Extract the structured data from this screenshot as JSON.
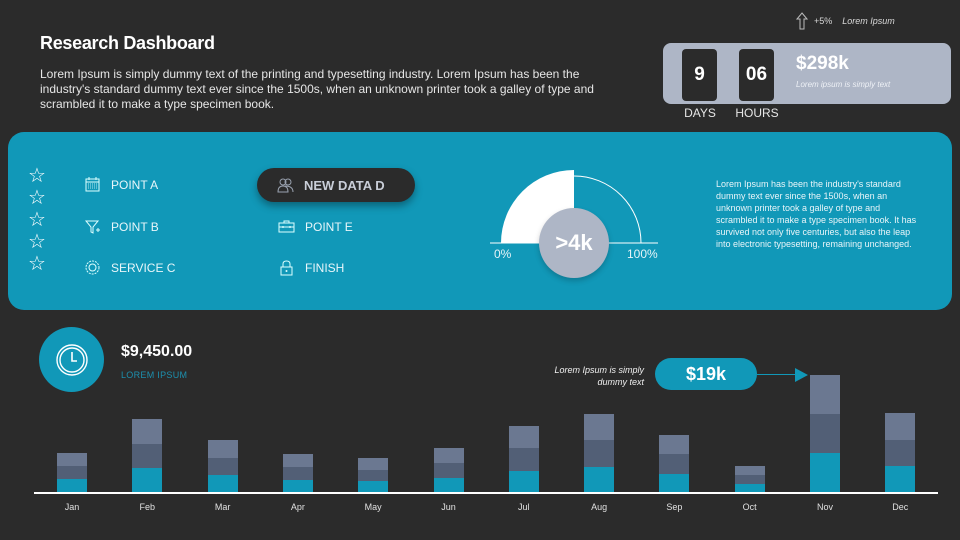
{
  "header": {
    "title": "Research Dashboard",
    "intro": "Lorem Ipsum is simply dummy text of the printing and typesetting industry. Lorem Ipsum has been the industry's standard dummy text ever since the 1500s, when an unknown printer took a galley of type and scrambled it to  make a type specimen book."
  },
  "trend": {
    "icon": "arrow-up-icon",
    "value": "+5%",
    "label": "Lorem Ipsum"
  },
  "counter": {
    "days_value": "9",
    "days_label": "DAYS",
    "hours_value": "06",
    "hours_label": "HOURS",
    "amount": "$298k",
    "amount_sub": "Lorem ipsum is simply text"
  },
  "panel": {
    "stars": 5,
    "items": [
      {
        "label": "POINT A",
        "icon": "calendar-icon"
      },
      {
        "label": "POINT B",
        "icon": "funnel-icon"
      },
      {
        "label": "SERVICE C",
        "icon": "settings-icon"
      },
      {
        "label": "NEW DATA D",
        "icon": "users-icon",
        "active": true
      },
      {
        "label": "POINT E",
        "icon": "briefcase-icon"
      },
      {
        "label": "FINISH",
        "icon": "lock-icon"
      }
    ],
    "gauge": {
      "value_label": ">4k",
      "min_label": "0%",
      "max_label": "100%",
      "fill_percent": 50
    },
    "description": "Lorem Ipsum has been the industry's standard dummy text ever since the  1500s, when an unknown printer took a galley  of type and scrambled it to make a type specimen book. It has survived not only five centuries, but also the leap into electronic typesetting,  remaining unchanged."
  },
  "summary": {
    "icon": "clock-icon",
    "amount": "$9,450.00",
    "label": "LOREM IPSUM"
  },
  "callout": {
    "text": "Lorem Ipsum is simply dummy text",
    "value": "$19k",
    "target_month": "Nov"
  },
  "colors": {
    "background": "#2b2b2b",
    "accent": "#1198b8",
    "card": "#aeb6c6",
    "bar_top": "#6b7891",
    "bar_mid": "#525f76",
    "bar_bottom": "#1198b8"
  },
  "chart_data": {
    "type": "bar",
    "stacked": true,
    "categories": [
      "Jan",
      "Feb",
      "Mar",
      "Apr",
      "May",
      "Jun",
      "Jul",
      "Aug",
      "Sep",
      "Oct",
      "Nov",
      "Dec"
    ],
    "series": [
      {
        "name": "bottom",
        "color": "#1198b8",
        "values": [
          13,
          24,
          17,
          12,
          11,
          14,
          21,
          25,
          18,
          8,
          39,
          26
        ]
      },
      {
        "name": "middle",
        "color": "#525f76",
        "values": [
          13,
          24,
          17,
          13,
          11,
          15,
          23,
          27,
          20,
          9,
          39,
          26
        ]
      },
      {
        "name": "top",
        "color": "#6b7891",
        "values": [
          13,
          25,
          18,
          13,
          12,
          15,
          22,
          26,
          19,
          9,
          39,
          27
        ]
      }
    ],
    "title": "",
    "xlabel": "",
    "ylabel": "",
    "grid": false,
    "legend": "none"
  }
}
